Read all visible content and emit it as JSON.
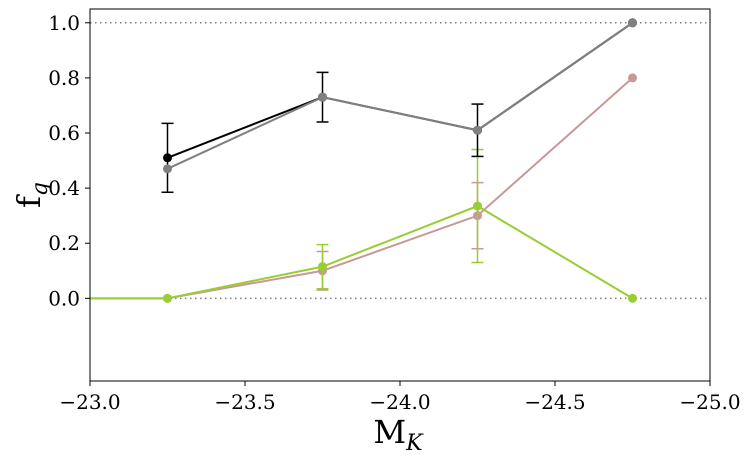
{
  "chart_data": {
    "type": "line",
    "xlabel": "M",
    "xlabel_sub": "K",
    "ylabel": "f",
    "ylabel_sub": "q",
    "xlim": [
      -23.0,
      -25.0
    ],
    "ylim": [
      -0.3,
      1.05
    ],
    "x_ticks": [
      -23.0,
      -23.5,
      -24.0,
      -24.5,
      -25.0
    ],
    "x_tick_labels": [
      "−23.0",
      "−23.5",
      "−24.0",
      "−24.5",
      "−25.0"
    ],
    "y_ticks": [
      0.0,
      0.2,
      0.4,
      0.6,
      0.8,
      1.0
    ],
    "y_tick_labels": [
      "0.0",
      "0.2",
      "0.4",
      "0.6",
      "0.8",
      "1.0"
    ],
    "reference_lines": [
      {
        "y": 1.0,
        "style": "dotted",
        "color": "#808080"
      },
      {
        "y": 0.0,
        "style": "dotted",
        "color": "#808080"
      }
    ],
    "series": [
      {
        "color": "#000000",
        "x": [
          -23.25,
          -23.75,
          -24.25,
          -24.75
        ],
        "y": [
          0.51,
          0.73,
          0.61,
          1.0
        ],
        "err": [
          0.125,
          0.09,
          0.095,
          null
        ]
      },
      {
        "color": "#808080",
        "x": [
          -23.25,
          -23.75,
          -24.25,
          -24.75
        ],
        "y": [
          0.47,
          0.73,
          0.61,
          1.0
        ],
        "err": [
          null,
          null,
          null,
          null
        ]
      },
      {
        "color": "#c89898",
        "x": [
          -23.0,
          -23.25,
          -23.75,
          -24.25,
          -24.75
        ],
        "y": [
          0.0,
          0.0,
          0.1,
          0.3,
          0.8
        ],
        "err": [
          null,
          null,
          0.07,
          0.12,
          null
        ]
      },
      {
        "color": "#9acd32",
        "x": [
          -23.0,
          -23.25,
          -23.75,
          -24.25,
          -24.75
        ],
        "y": [
          0.0,
          0.0,
          0.115,
          0.335,
          0.0
        ],
        "err": [
          null,
          null,
          0.08,
          0.205,
          null
        ]
      }
    ]
  }
}
